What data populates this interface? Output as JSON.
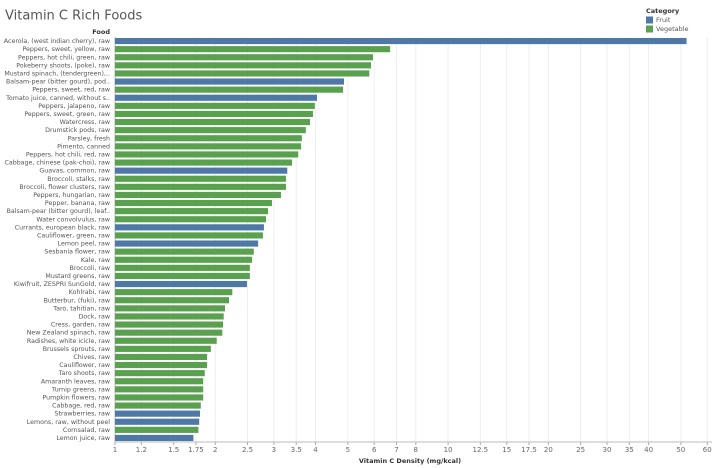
{
  "chart_data": {
    "type": "bar",
    "orientation": "horizontal",
    "title": "Vitamin C Rich Foods",
    "row_header": "Food",
    "x_label": "Vitamin C Density (mg/kcal)",
    "legend_title": "Category",
    "legend_position": "top-right",
    "log_scale": true,
    "grid": true,
    "categories": [
      "Acerola, (west indian cherry), raw",
      "Peppers, sweet, yellow, raw",
      "Peppers, hot chili, green, raw",
      "Pokeberry shoots, (poke), raw",
      "Mustard spinach, (tendergreen),..",
      "Balsam-pear (bitter gourd), pod..",
      "Peppers, sweet, red, raw",
      "Tomato juice, canned, without s..",
      "Peppers, jalapeno, raw",
      "Peppers, sweet, green, raw",
      "Watercress, raw",
      "Drumstick pods, raw",
      "Parsley, fresh",
      "Pimento, canned",
      "Peppers, hot chili, red, raw",
      "Cabbage, chinese (pak-choi), raw",
      "Guavas, common, raw",
      "Broccoli, stalks, raw",
      "Broccoli, flower clusters, raw",
      "Peppers, hungarian, raw",
      "Pepper, banana, raw",
      "Balsam-pear (bitter gourd), leaf..",
      "Water convolvulus, raw",
      "Currants, european black, raw",
      "Cauliflower, green, raw",
      "Lemon peel, raw",
      "Sesbania flower, raw",
      "Kale, raw",
      "Broccoli, raw",
      "Mustard greens, raw",
      "Kiwifruit, ZESPRI SunGold, raw",
      "Kohlrabi, raw",
      "Butterbur, (fuki), raw",
      "Taro, tahitian, raw",
      "Dock, raw",
      "Cress, garden, raw",
      "New Zealand spinach, raw",
      "Radishes, white icicle, raw",
      "Brussels sprouts, raw",
      "Chives, raw",
      "Cauliflower, raw",
      "Taro shoots, raw",
      "Amaranth leaves, raw",
      "Turnip greens, raw",
      "Pumpkin flowers, raw",
      "Cabbage, red, raw",
      "Strawberries, raw",
      "Lemons, raw, without peel",
      "Cornsalad, raw",
      "Lemon juice, raw"
    ],
    "series": [
      {
        "name": "Fruit",
        "color": "#4e79a7",
        "values": [
          52,
          null,
          null,
          null,
          null,
          4.87,
          null,
          4.04,
          null,
          null,
          null,
          null,
          null,
          null,
          null,
          null,
          3.29,
          null,
          null,
          null,
          null,
          null,
          null,
          2.8,
          null,
          2.69,
          null,
          null,
          null,
          null,
          2.49,
          null,
          null,
          null,
          null,
          null,
          null,
          null,
          null,
          null,
          null,
          null,
          null,
          null,
          null,
          null,
          1.8,
          1.79,
          null,
          1.72
        ]
      },
      {
        "name": "Vegetable",
        "color": "#59a14f",
        "values": [
          null,
          6.7,
          5.95,
          5.87,
          5.8,
          null,
          4.84,
          null,
          3.98,
          3.93,
          3.85,
          3.74,
          3.64,
          3.62,
          3.55,
          3.4,
          null,
          3.26,
          3.26,
          3.15,
          2.96,
          2.88,
          2.84,
          null,
          2.78,
          null,
          2.61,
          2.58,
          2.54,
          2.54,
          null,
          2.25,
          2.2,
          2.14,
          2.12,
          2.11,
          2.1,
          2.02,
          1.94,
          1.89,
          1.89,
          1.86,
          1.84,
          1.84,
          1.84,
          1.81,
          null,
          null,
          1.78,
          null
        ]
      }
    ],
    "xlim": [
      1,
      62
    ],
    "xticks": [
      1,
      1.2,
      1.5,
      1.75,
      2,
      2.5,
      3,
      3.5,
      4,
      5,
      6,
      7,
      8,
      10,
      12.5,
      15,
      17.5,
      20,
      25,
      30,
      35,
      40,
      50,
      60
    ]
  }
}
